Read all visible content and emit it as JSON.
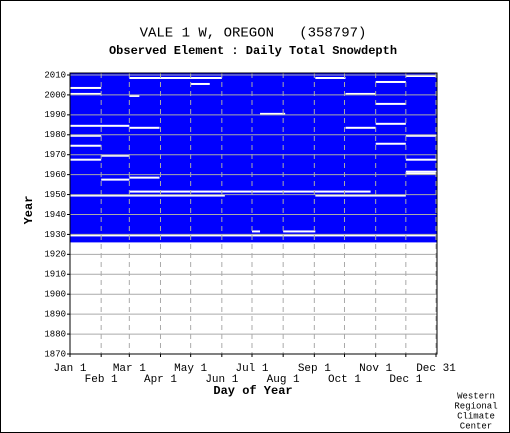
{
  "chart_data": {
    "type": "availability",
    "title": "VALE 1 W, OREGON   (358797)",
    "subtitle": "Observed Element : Daily Total Snowdepth",
    "x_label": "Day of Year",
    "y_label": "Year",
    "xlim": [
      1,
      366
    ],
    "ylim": [
      1870,
      2011
    ],
    "xticks": [
      {
        "value": 1,
        "label": "Jan 1"
      },
      {
        "value": 32,
        "label": "Feb 1"
      },
      {
        "value": 60,
        "label": "Mar 1"
      },
      {
        "value": 91,
        "label": "Apr 1"
      },
      {
        "value": 121,
        "label": "May 1"
      },
      {
        "value": 152,
        "label": "Jun 1"
      },
      {
        "value": 182,
        "label": "Jul 1"
      },
      {
        "value": 213,
        "label": "Aug 1"
      },
      {
        "value": 244,
        "label": "Sep 1"
      },
      {
        "value": 274,
        "label": "Oct 1"
      },
      {
        "value": 305,
        "label": "Nov 1"
      },
      {
        "value": 335,
        "label": "Dec 1"
      },
      {
        "value": 365,
        "label": "Dec 31"
      }
    ],
    "yticks": [
      1870,
      1880,
      1890,
      1900,
      1910,
      1920,
      1930,
      1940,
      1950,
      1960,
      1970,
      1980,
      1990,
      2000,
      2010
    ],
    "color": "#0000ff",
    "observed": {
      "start_year": 1926,
      "end_year": 2010
    },
    "gaps": [
      {
        "year": 1929,
        "start_day": 1,
        "end_day": 366
      },
      {
        "year": 1931,
        "start_day": 182,
        "end_day": 190
      },
      {
        "year": 1931,
        "start_day": 213,
        "end_day": 245
      },
      {
        "year": 1949,
        "start_day": 1,
        "end_day": 155
      },
      {
        "year": 1949,
        "start_day": 245,
        "end_day": 335
      },
      {
        "year": 1951,
        "start_day": 60,
        "end_day": 300
      },
      {
        "year": 1957,
        "start_day": 32,
        "end_day": 60
      },
      {
        "year": 1958,
        "start_day": 60,
        "end_day": 90
      },
      {
        "year": 1960,
        "start_day": 335,
        "end_day": 366
      },
      {
        "year": 1961,
        "start_day": 335,
        "end_day": 366
      },
      {
        "year": 1967,
        "start_day": 1,
        "end_day": 32
      },
      {
        "year": 1967,
        "start_day": 335,
        "end_day": 366
      },
      {
        "year": 1969,
        "start_day": 32,
        "end_day": 60
      },
      {
        "year": 1974,
        "start_day": 1,
        "end_day": 32
      },
      {
        "year": 1975,
        "start_day": 305,
        "end_day": 335
      },
      {
        "year": 1979,
        "start_day": 1,
        "end_day": 32
      },
      {
        "year": 1979,
        "start_day": 335,
        "end_day": 366
      },
      {
        "year": 1983,
        "start_day": 60,
        "end_day": 90
      },
      {
        "year": 1983,
        "start_day": 275,
        "end_day": 305
      },
      {
        "year": 1984,
        "start_day": 1,
        "end_day": 60
      },
      {
        "year": 1985,
        "start_day": 305,
        "end_day": 335
      },
      {
        "year": 1990,
        "start_day": 190,
        "end_day": 215
      },
      {
        "year": 1995,
        "start_day": 305,
        "end_day": 335
      },
      {
        "year": 1999,
        "start_day": 60,
        "end_day": 70
      },
      {
        "year": 2000,
        "start_day": 1,
        "end_day": 32
      },
      {
        "year": 2000,
        "start_day": 275,
        "end_day": 305
      },
      {
        "year": 2003,
        "start_day": 1,
        "end_day": 32
      },
      {
        "year": 2005,
        "start_day": 121,
        "end_day": 140
      },
      {
        "year": 2006,
        "start_day": 305,
        "end_day": 335
      },
      {
        "year": 2008,
        "start_day": 60,
        "end_day": 152
      },
      {
        "year": 2008,
        "start_day": 245,
        "end_day": 275
      },
      {
        "year": 2009,
        "start_day": 335,
        "end_day": 366
      }
    ],
    "credit": [
      "Western",
      "Regional",
      "Climate",
      "Center"
    ]
  }
}
